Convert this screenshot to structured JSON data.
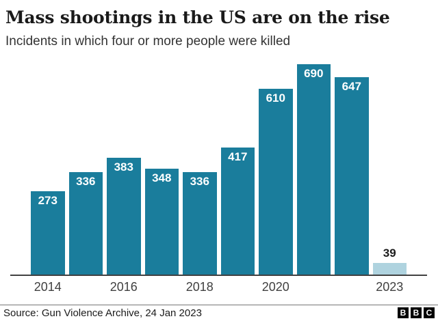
{
  "header": {
    "title": "Mass shootings in the US are on the rise",
    "subtitle": "Incidents in which four or more people were killed"
  },
  "chart_data": {
    "type": "bar",
    "title": "Mass shootings in the US are on the rise",
    "subtitle": "Incidents in which four or more people were killed",
    "categories": [
      "2014",
      "2015",
      "2016",
      "2017",
      "2018",
      "2019",
      "2020",
      "2021",
      "2022",
      "2023"
    ],
    "values": [
      273,
      336,
      383,
      348,
      336,
      417,
      610,
      690,
      647,
      39
    ],
    "bar_value_labels": [
      "273",
      "336",
      "383",
      "348",
      "336",
      "417",
      "610",
      "690",
      "647",
      "39"
    ],
    "xlabel": "",
    "ylabel": "",
    "ylim": [
      0,
      690
    ],
    "grid": false,
    "legend": "none",
    "x_tick_labels": [
      {
        "label": "2014",
        "bar_index": 0
      },
      {
        "label": "2016",
        "bar_index": 2
      },
      {
        "label": "2018",
        "bar_index": 4
      },
      {
        "label": "2020",
        "bar_index": 6
      },
      {
        "label": "2023",
        "bar_index": 9
      }
    ],
    "partial_bar_index": 9,
    "colors": {
      "bar": "#1A7D9C",
      "partial_bar": "#AFD3DF",
      "value_label_on_bar": "#FFFFFF",
      "value_label_above_bar": "#1A1A1A",
      "axis_line": "#404040"
    }
  },
  "footer": {
    "source": "Source: Gun Violence Archive, 24 Jan 2023",
    "logo_letters": [
      "B",
      "B",
      "C"
    ]
  }
}
